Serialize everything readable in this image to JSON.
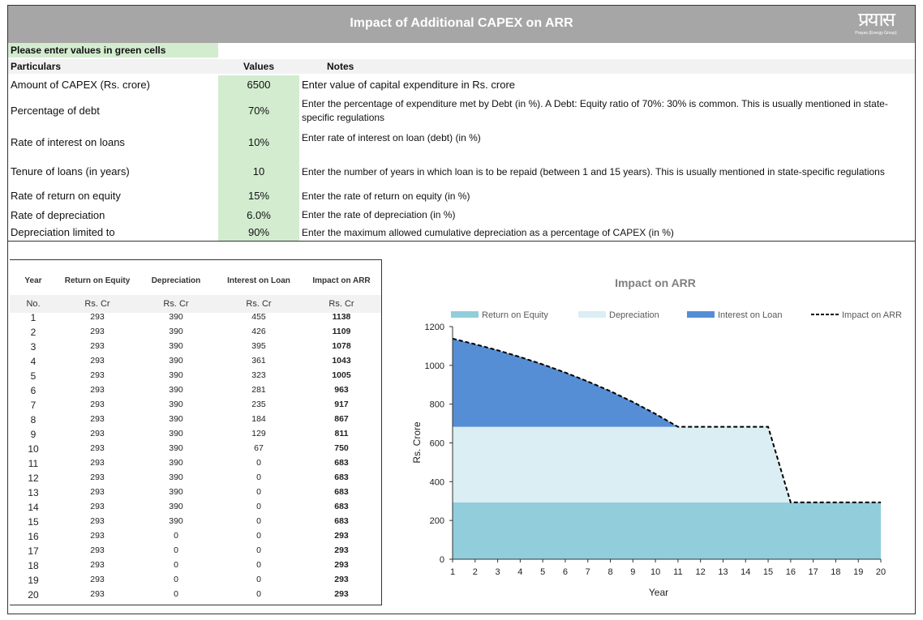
{
  "header": {
    "title": "Impact of Additional CAPEX on ARR",
    "logo_text": "प्रयास",
    "logo_sub": "Prayas (Energy Group)"
  },
  "inputs": {
    "instruction": "Please enter values in green cells",
    "columns": [
      "Particulars",
      "Values",
      "Notes"
    ],
    "rows": [
      {
        "label": "Amount of CAPEX (Rs. crore)",
        "value": "6500",
        "note": "Enter value of capital expenditure in Rs. crore"
      },
      {
        "label": "Percentage of debt",
        "value": "70%",
        "note": "Enter the percentage of expenditure met by Debt (in %). A Debt: Equity ratio of 70%: 30% is common. This is usually mentioned in state-specific regulations"
      },
      {
        "label": "Rate of interest on loans",
        "value": "10%",
        "note": "Enter rate of interest on loan (debt) (in %)"
      },
      {
        "label": "Tenure of loans (in years)",
        "value": "10",
        "note": "Enter the number of years in which loan is to be repaid (between 1 and 15 years). This is usually mentioned in state-specific regulations"
      },
      {
        "label": "Rate of return on equity",
        "value": "15%",
        "note": "Enter the rate of return on equity (in %)"
      },
      {
        "label": "Rate of depreciation",
        "value": "6.0%",
        "note": "Enter the rate of depreciation (in %)"
      },
      {
        "label": "Depreciation limited to",
        "value": "90%",
        "note": "Enter the maximum allowed cumulative depreciation as a percentage of CAPEX (in %)"
      }
    ]
  },
  "table": {
    "headers": [
      "Year",
      "Return on Equity",
      "Depreciation",
      "Interest on Loan",
      "Impact on ARR"
    ],
    "units": [
      "No.",
      "Rs. Cr",
      "Rs. Cr",
      "Rs. Cr",
      "Rs. Cr"
    ],
    "rows": [
      [
        "1",
        "293",
        "390",
        "455",
        "1138"
      ],
      [
        "2",
        "293",
        "390",
        "426",
        "1109"
      ],
      [
        "3",
        "293",
        "390",
        "395",
        "1078"
      ],
      [
        "4",
        "293",
        "390",
        "361",
        "1043"
      ],
      [
        "5",
        "293",
        "390",
        "323",
        "1005"
      ],
      [
        "6",
        "293",
        "390",
        "281",
        "963"
      ],
      [
        "7",
        "293",
        "390",
        "235",
        "917"
      ],
      [
        "8",
        "293",
        "390",
        "184",
        "867"
      ],
      [
        "9",
        "293",
        "390",
        "129",
        "811"
      ],
      [
        "10",
        "293",
        "390",
        "67",
        "750"
      ],
      [
        "11",
        "293",
        "390",
        "0",
        "683"
      ],
      [
        "12",
        "293",
        "390",
        "0",
        "683"
      ],
      [
        "13",
        "293",
        "390",
        "0",
        "683"
      ],
      [
        "14",
        "293",
        "390",
        "0",
        "683"
      ],
      [
        "15",
        "293",
        "390",
        "0",
        "683"
      ],
      [
        "16",
        "293",
        "0",
        "0",
        "293"
      ],
      [
        "17",
        "293",
        "0",
        "0",
        "293"
      ],
      [
        "18",
        "293",
        "0",
        "0",
        "293"
      ],
      [
        "19",
        "293",
        "0",
        "0",
        "293"
      ],
      [
        "20",
        "293",
        "0",
        "0",
        "293"
      ]
    ]
  },
  "chart_data": {
    "type": "area",
    "title": "Impact on ARR",
    "xlabel": "Year",
    "ylabel": "Rs. Crore",
    "x": [
      1,
      2,
      3,
      4,
      5,
      6,
      7,
      8,
      9,
      10,
      11,
      12,
      13,
      14,
      15,
      16,
      17,
      18,
      19,
      20
    ],
    "ylim": [
      0,
      1200
    ],
    "yticks": [
      0,
      200,
      400,
      600,
      800,
      1000,
      1200
    ],
    "legend_position": "top",
    "series": [
      {
        "name": "Return on Equity",
        "kind": "stacked-area",
        "color": "#92cddc",
        "values": [
          293,
          293,
          293,
          293,
          293,
          293,
          293,
          293,
          293,
          293,
          293,
          293,
          293,
          293,
          293,
          293,
          293,
          293,
          293,
          293
        ]
      },
      {
        "name": "Depreciation",
        "kind": "stacked-area",
        "color": "#daeef3",
        "values": [
          390,
          390,
          390,
          390,
          390,
          390,
          390,
          390,
          390,
          390,
          390,
          390,
          390,
          390,
          390,
          0,
          0,
          0,
          0,
          0
        ]
      },
      {
        "name": "Interest on Loan",
        "kind": "stacked-area",
        "color": "#558ed5",
        "values": [
          455,
          426,
          395,
          361,
          323,
          281,
          235,
          184,
          129,
          67,
          0,
          0,
          0,
          0,
          0,
          0,
          0,
          0,
          0,
          0
        ]
      },
      {
        "name": "Impact on ARR",
        "kind": "dashed-line",
        "color": "#000000",
        "values": [
          1138,
          1109,
          1078,
          1043,
          1005,
          963,
          917,
          867,
          811,
          750,
          683,
          683,
          683,
          683,
          683,
          293,
          293,
          293,
          293,
          293
        ]
      }
    ]
  }
}
